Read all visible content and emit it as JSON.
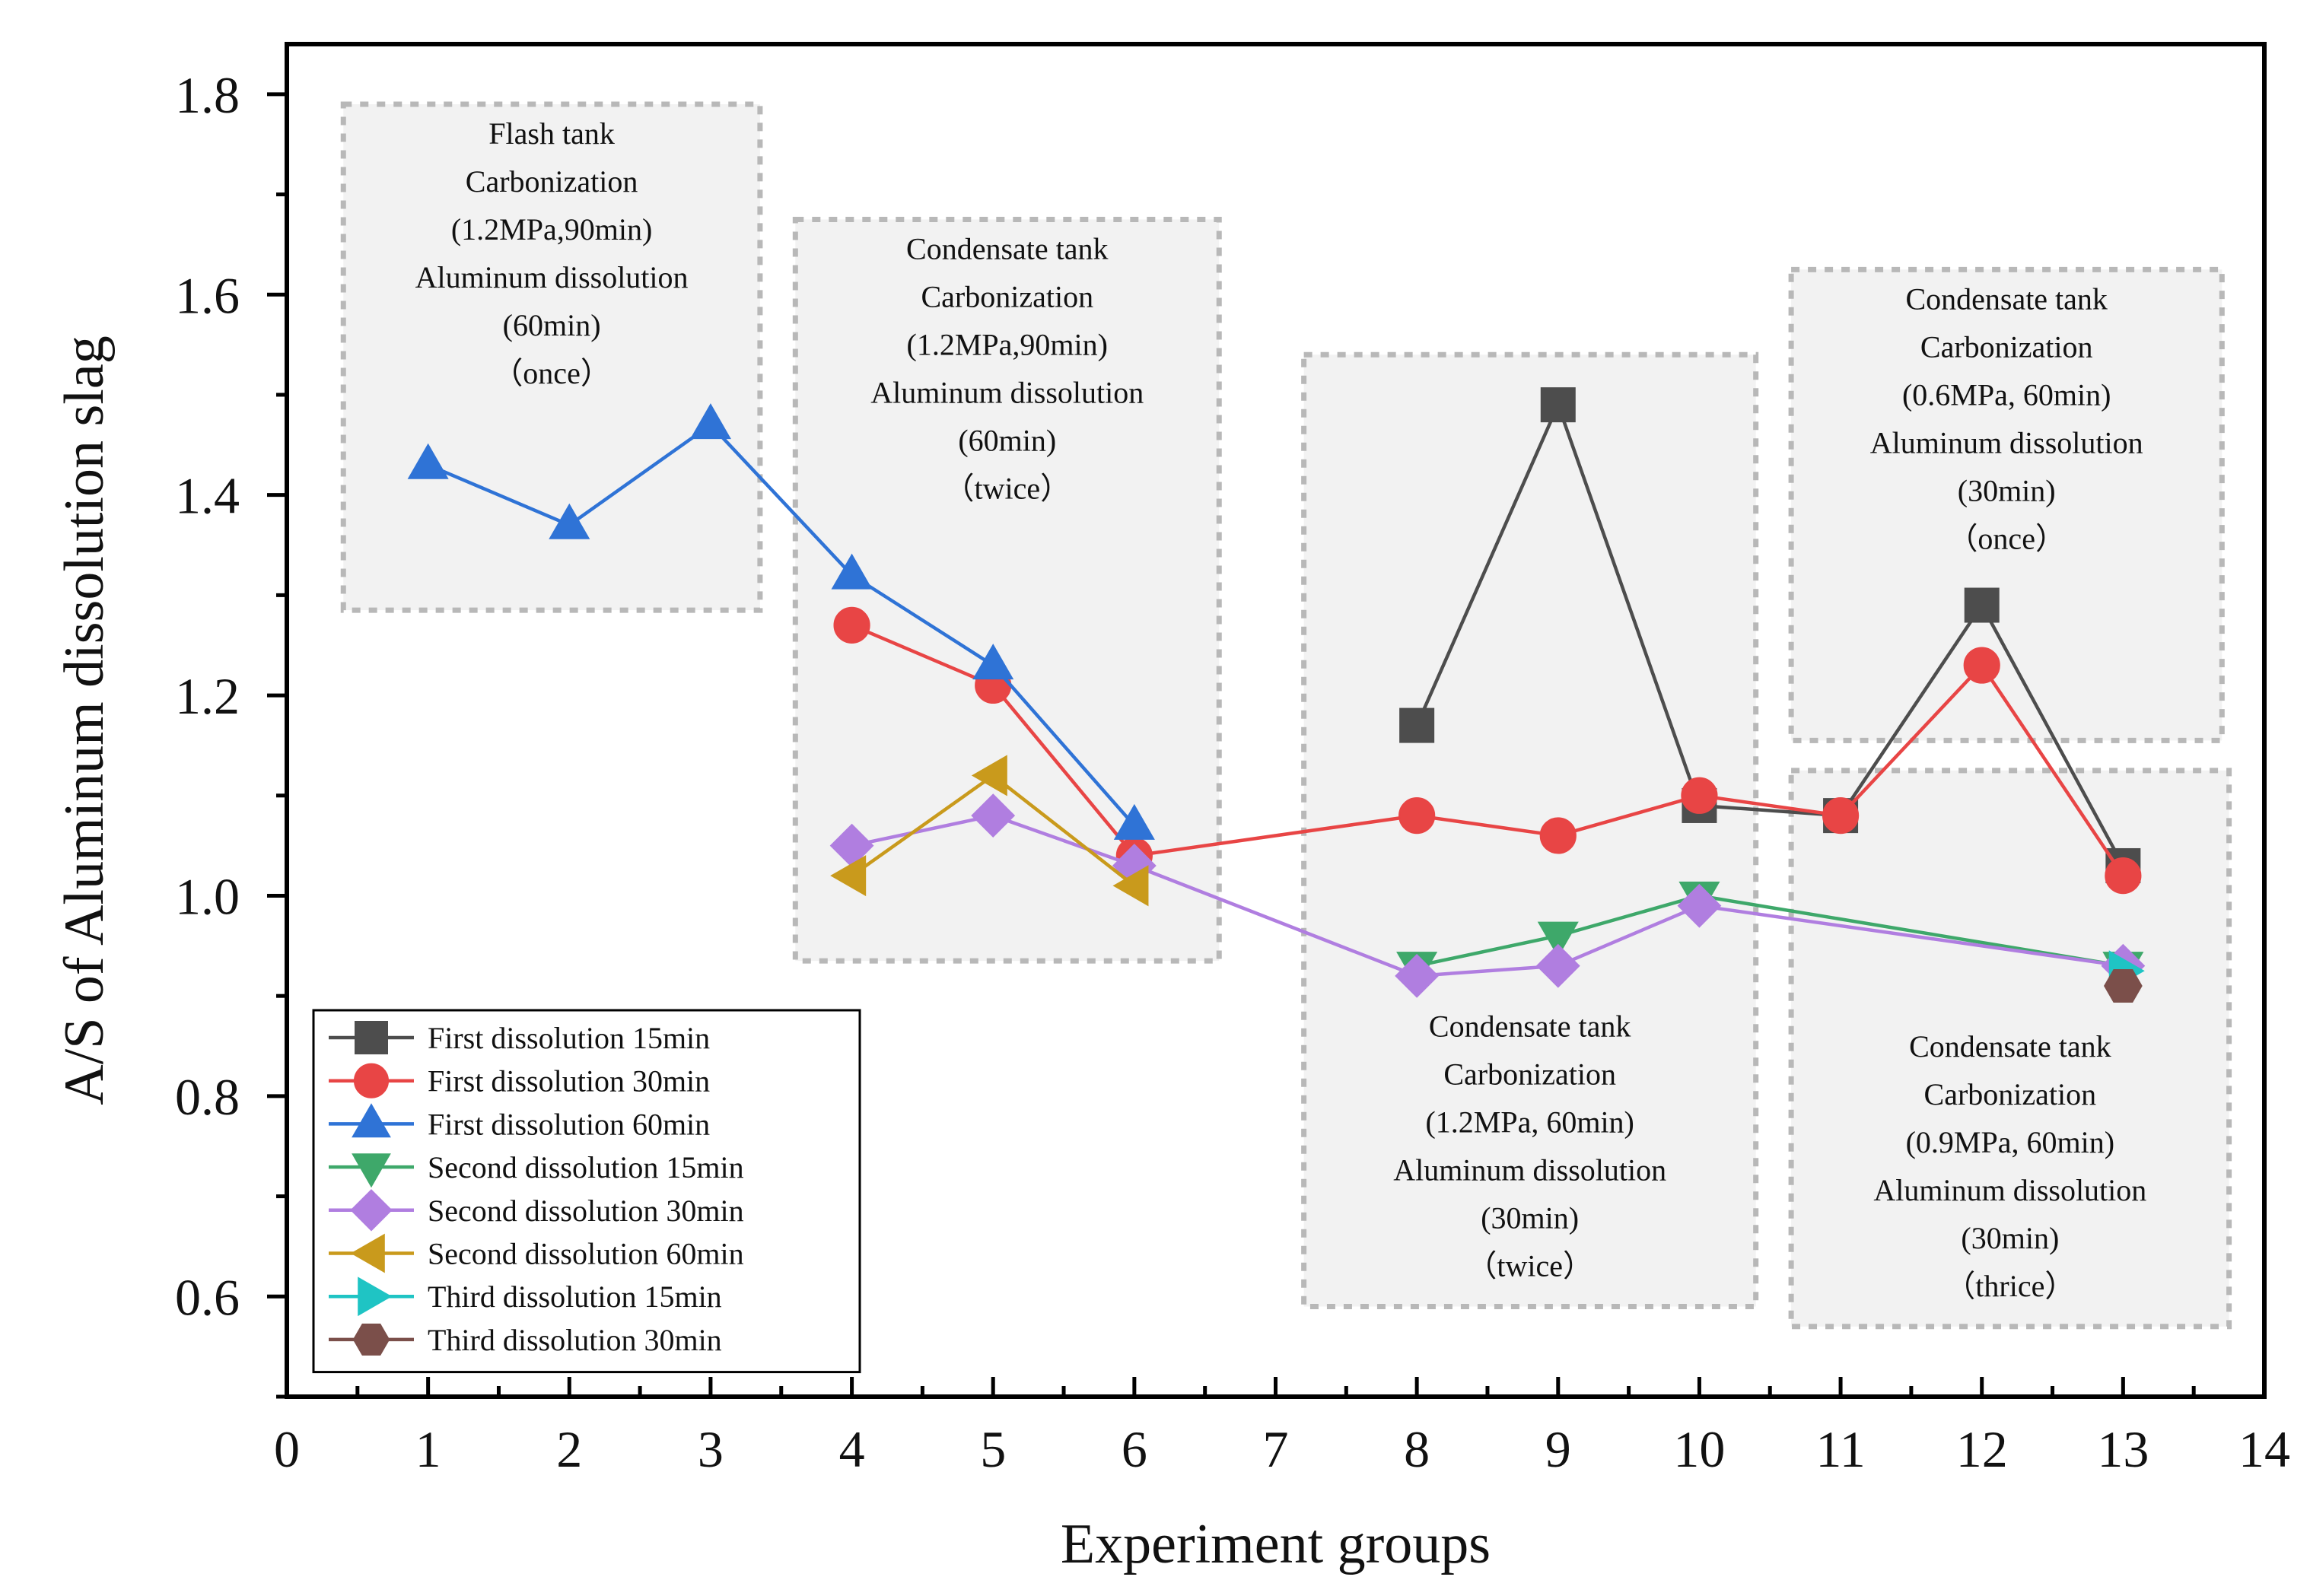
{
  "chart_data": {
    "type": "line",
    "title": "",
    "xlabel": "Experiment groups",
    "ylabel": "A/S of Aluminum dissolution slag",
    "xlim": [
      0,
      14
    ],
    "ylim": [
      0.5,
      1.85
    ],
    "x_ticks": [
      0,
      1,
      2,
      3,
      4,
      5,
      6,
      7,
      8,
      9,
      10,
      11,
      12,
      13,
      14
    ],
    "x_tick_labels": [
      "0",
      "1",
      "2",
      "3",
      "4",
      "5",
      "6",
      "7",
      "8",
      "9",
      "10",
      "11",
      "12",
      "13",
      "14"
    ],
    "y_ticks": [
      0.6,
      0.8,
      1.0,
      1.2,
      1.4,
      1.6,
      1.8
    ],
    "y_tick_labels": [
      "0.6",
      "0.8",
      "1.0",
      "1.2",
      "1.4",
      "1.6",
      "1.8"
    ],
    "legend_position": "bottom-left",
    "series": [
      {
        "name": "First dissolution 15min",
        "color": "#4d4d4d",
        "marker": "square",
        "points": [
          [
            8,
            1.17
          ],
          [
            9,
            1.49
          ],
          [
            10,
            1.09
          ],
          [
            11,
            1.08
          ],
          [
            12,
            1.29
          ],
          [
            13,
            1.03
          ]
        ]
      },
      {
        "name": "First dissolution 30min",
        "color": "#e84545",
        "marker": "circle",
        "points": [
          [
            4,
            1.27
          ],
          [
            5,
            1.21
          ],
          [
            6,
            1.04
          ],
          [
            8,
            1.08
          ],
          [
            9,
            1.06
          ],
          [
            10,
            1.1
          ],
          [
            11,
            1.08
          ],
          [
            12,
            1.23
          ],
          [
            13,
            1.02
          ]
        ]
      },
      {
        "name": "First dissolution 60min",
        "color": "#2f73d6",
        "marker": "triangle-up",
        "points": [
          [
            1,
            1.43
          ],
          [
            2,
            1.37
          ],
          [
            3,
            1.47
          ],
          [
            4,
            1.32
          ],
          [
            5,
            1.23
          ],
          [
            6,
            1.07
          ]
        ]
      },
      {
        "name": "Second dissolution 15min",
        "color": "#3ea86a",
        "marker": "triangle-down",
        "points": [
          [
            8,
            0.93
          ],
          [
            9,
            0.96
          ],
          [
            10,
            1.0
          ],
          [
            13,
            0.93
          ]
        ]
      },
      {
        "name": "Second dissolution 30min",
        "color": "#b07ee0",
        "marker": "diamond",
        "points": [
          [
            4,
            1.05
          ],
          [
            5,
            1.08
          ],
          [
            6,
            1.03
          ],
          [
            8,
            0.92
          ],
          [
            9,
            0.93
          ],
          [
            10,
            0.99
          ],
          [
            13,
            0.93
          ]
        ]
      },
      {
        "name": "Second dissolution 60min",
        "color": "#c99a1c",
        "marker": "triangle-left",
        "points": [
          [
            4,
            1.02
          ],
          [
            5,
            1.12
          ],
          [
            6,
            1.01
          ]
        ]
      },
      {
        "name": "Third dissolution 15min",
        "color": "#1fc4c4",
        "marker": "triangle-right",
        "points": [
          [
            13,
            0.925
          ]
        ]
      },
      {
        "name": "Third dissolution 30min",
        "color": "#7b4f4a",
        "marker": "hexagon",
        "points": [
          [
            13,
            0.91
          ]
        ]
      }
    ],
    "annotations": [
      {
        "name": "flash-tank-box",
        "x_range": [
          0.4,
          3.35
        ],
        "y_range": [
          1.285,
          1.79
        ],
        "lines": [
          "Flash tank",
          "Carbonization",
          "(1.2MPa,90min)",
          "Aluminum dissolution",
          "(60min)",
          "（once）"
        ]
      },
      {
        "name": "condensate-twice-box",
        "x_range": [
          3.6,
          6.6
        ],
        "y_range": [
          0.935,
          1.675
        ],
        "lines": [
          "Condensate tank",
          "Carbonization",
          "(1.2MPa,90min)",
          "Aluminum dissolution",
          "(60min)",
          "（twice）"
        ]
      },
      {
        "name": "condensate-1-2mpa-box",
        "x_range": [
          7.2,
          10.4
        ],
        "y_range": [
          0.59,
          1.54
        ],
        "lines": [
          "Condensate tank",
          "Carbonization",
          "(1.2MPa, 60min)",
          "Aluminum dissolution",
          "(30min)",
          "（twice）"
        ]
      },
      {
        "name": "condensate-0-6mpa-box",
        "x_range": [
          10.65,
          13.7
        ],
        "y_range": [
          1.155,
          1.625
        ],
        "lines": [
          "Condensate tank",
          "Carbonization",
          "(0.6MPa, 60min)",
          "Aluminum dissolution",
          "(30min)",
          "（once）"
        ]
      },
      {
        "name": "condensate-0-9mpa-box",
        "x_range": [
          10.65,
          13.75
        ],
        "y_range": [
          0.57,
          1.125
        ],
        "lines": [
          "Condensate tank",
          "Carbonization",
          "(0.9MPa, 60min)",
          "Aluminum dissolution",
          "(30min)",
          "（thrice）"
        ]
      }
    ]
  }
}
